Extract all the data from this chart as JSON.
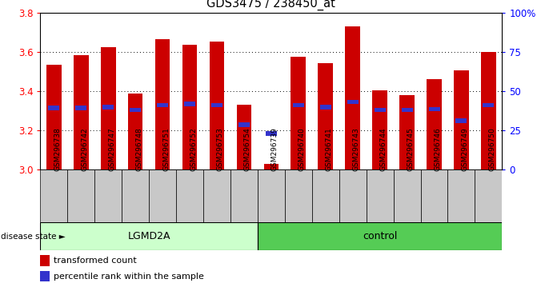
{
  "title": "GDS3475 / 238450_at",
  "samples": [
    "GSM296738",
    "GSM296742",
    "GSM296747",
    "GSM296748",
    "GSM296751",
    "GSM296752",
    "GSM296753",
    "GSM296754",
    "GSM296739",
    "GSM296740",
    "GSM296741",
    "GSM296743",
    "GSM296744",
    "GSM296745",
    "GSM296746",
    "GSM296749",
    "GSM296750"
  ],
  "bar_tops": [
    3.535,
    3.585,
    3.625,
    3.39,
    3.665,
    3.635,
    3.655,
    3.33,
    3.03,
    3.575,
    3.545,
    3.73,
    3.405,
    3.38,
    3.46,
    3.505,
    3.6
  ],
  "blue_marks": [
    3.315,
    3.315,
    3.32,
    3.305,
    3.33,
    3.335,
    3.33,
    3.23,
    3.185,
    3.33,
    3.32,
    3.345,
    3.305,
    3.305,
    3.31,
    3.25,
    3.33
  ],
  "bar_color": "#cc0000",
  "blue_color": "#3333cc",
  "ymin": 3.0,
  "ymax": 3.8,
  "yticks_left": [
    3.0,
    3.2,
    3.4,
    3.6,
    3.8
  ],
  "right_ytick_vals": [
    0,
    25,
    50,
    75,
    100
  ],
  "right_yticklabels": [
    "0",
    "25",
    "50",
    "75",
    "100%"
  ],
  "lgmd2a_count": 8,
  "lgmd2a_color": "#ccffcc",
  "control_color": "#55cc55",
  "legend_items": [
    {
      "color": "#cc0000",
      "label": "transformed count"
    },
    {
      "color": "#3333cc",
      "label": "percentile rank within the sample"
    }
  ],
  "bar_width": 0.55
}
